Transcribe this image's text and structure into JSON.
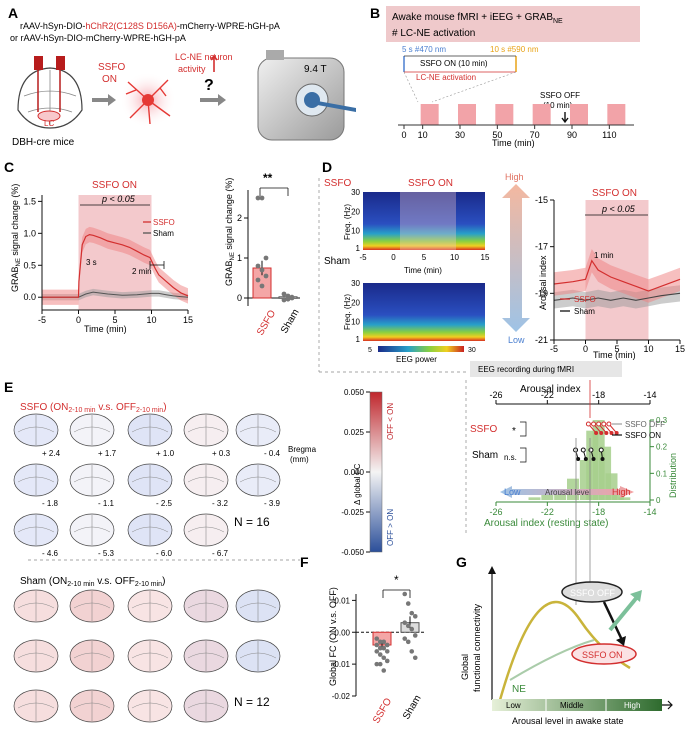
{
  "colors": {
    "red": "#d32f2f",
    "pink_bg": "#f3c9cc",
    "gray": "#555555",
    "green": "#3a8a3a",
    "blue": "#4a7fd0",
    "orange": "#e8a317"
  },
  "panel_A": {
    "label": "A",
    "line1_prefix": "rAAV-hSyn-DIO-",
    "line1_red": "hChR2(C128S D156A)",
    "line1_suffix": "-mCherry-WPRE-hGH-pA",
    "line2": "or  rAAV-hSyn-DIO-mCherry-WPRE-hGH-pA",
    "ssfo_on": [
      "SSFO",
      "ON"
    ],
    "lc_ne": [
      "LC-NE neuron",
      "activity"
    ],
    "lc": "LC",
    "mouse": "DBH-cre mice",
    "question": "?",
    "field": "9.4 T"
  },
  "panel_B": {
    "label": "B",
    "title_line1": "Awake mouse fMRI  + iEEG + GRAB",
    "title_sub": "NE",
    "title_line2": "# LC-NE activation",
    "blue_label": "5 s #470 nm",
    "orange_label": "10 s #590 nm",
    "ssfo_on_label": "SSFO ON (10 min)",
    "activation_label": "LC-NE activation",
    "ssfo_off_label": [
      "SSFO OFF",
      "(10 min)"
    ],
    "ticks": [
      "0",
      "10",
      "30",
      "50",
      "70",
      "90",
      "110"
    ],
    "xlabel": "Time (min)"
  },
  "panel_C": {
    "label": "C",
    "shade_label": "SSFO ON",
    "pval": "p < 0.05",
    "ann_3s": "3 s",
    "ann_2min": "2 min",
    "legend": [
      "SSFO",
      "Sham"
    ],
    "ylabel": "GRAB",
    "ylabel_sub": "NE",
    "ylabel_rest": " signal change (%)",
    "xlabel": "Time (min)",
    "xticks": [
      "-5",
      "0",
      "5",
      "10",
      "15"
    ],
    "yticks": [
      "0.0",
      "0.5",
      "1.0",
      "1.5"
    ],
    "bar_sig": "**",
    "bar_labels": [
      "SSFO",
      "Sham"
    ],
    "bar_yticks": [
      "0",
      "1",
      "2"
    ]
  },
  "panel_D": {
    "label": "D",
    "ssfo_label": "SSFO",
    "sham_label": "Sham",
    "shade_label": "SSFO ON",
    "spec_ylabel": "Freq. (Hz)",
    "spec_yticks": [
      "30",
      "20",
      "10",
      "1"
    ],
    "spec_xticks": [
      "-5",
      "0",
      "5",
      "10",
      "15"
    ],
    "spec_xlabel": "Time (min)",
    "colorbar_min": "5",
    "colorbar_label": "EEG power",
    "colorbar_max": "30",
    "ar_high": "High",
    "ar_low": "Low",
    "ar_ylabel": "Arousal index",
    "ar_yticks": [
      "-15",
      "-17",
      "-19",
      "-21"
    ],
    "ar_xticks": [
      "-5",
      "0",
      "5",
      "10",
      "15"
    ],
    "ar_xlabel": "Time (min)",
    "ar_shade": "SSFO ON",
    "ar_pval": "p < 0.05",
    "ar_ann": "1 min",
    "ar_legend": [
      "SSFO",
      "Sham"
    ],
    "eeg_box": "EEG recording during fMRI"
  },
  "panel_E": {
    "label": "E",
    "ssfo_title_prefix": "SSFO (ON",
    "ssfo_title_sub1": "2-10 min",
    "ssfo_title_mid": " v.s. OFF",
    "ssfo_title_sub2": "2-10 min",
    "ssfo_title_end": ")",
    "sham_title_prefix": "Sham (ON",
    "sham_title_sub1": "2-10 min",
    "sham_title_mid": " v.s. OFF",
    "sham_title_sub2": "2-10 min",
    "sham_title_end": ")",
    "bregma_row1": [
      "+ 2.4",
      "+ 1.7",
      "+ 1.0",
      "+ 0.3",
      "- 0.4"
    ],
    "bregma_row2": [
      "- 1.8",
      "- 1.1",
      "- 2.5",
      "- 3.2",
      "- 3.9"
    ],
    "bregma_row3": [
      "- 4.6",
      "- 5.3",
      "- 6.0",
      "- 6.7"
    ],
    "bregma_label": [
      "Bregma",
      "(mm)"
    ],
    "n_ssfo": "N = 16",
    "n_sham": "N = 12",
    "cb_ticks": [
      "0.050",
      "0.025",
      "0.000",
      "-0.025",
      "-0.050"
    ],
    "cb_label": "Δ global FC",
    "cb_top": "OFF < ON",
    "cb_bottom": "OFF > ON"
  },
  "panel_arousal_dist": {
    "title": "Arousal index",
    "top_ticks": [
      "-26",
      "-22",
      "-18",
      "-14"
    ],
    "ssfo": "SSFO",
    "sham": "Sham",
    "sig_star": "*",
    "sig_ns": "n.s.",
    "legend_off": "SSFO OFF",
    "legend_on": "SSFO ON",
    "low": "Low",
    "arousal_level": "Arousal level",
    "high": "High",
    "bottom_ticks": [
      "-26",
      "-22",
      "-18",
      "-14"
    ],
    "xlabel": "Arousal index (resting state)",
    "dist_label": "Distribution",
    "dist_ticks": [
      "0.3",
      "0.2",
      "0.1",
      "0"
    ]
  },
  "panel_F": {
    "label": "F",
    "sig": "*",
    "ylabel": "Global FC (ON v.s. OFF)",
    "yticks": [
      "0.01",
      "0.00",
      "-0.01",
      "-0.02"
    ],
    "xlabels": [
      "SSFO",
      "Sham"
    ]
  },
  "panel_G": {
    "label": "G",
    "ssfo_off": "SSFO OFF",
    "ssfo_on": "SSFO ON",
    "ne": "NE",
    "ylabel": [
      "Global",
      "functional connectivity"
    ],
    "levels": [
      "Low",
      "Middle",
      "High"
    ],
    "xlabel": "Arousal level in awake state"
  },
  "chart_data": [
    {
      "id": "C_trace",
      "type": "line",
      "title": "GRAB-NE signal change",
      "xlabel": "Time (min)",
      "ylabel": "GRAB-NE signal change (%)",
      "xlim": [
        -5,
        15
      ],
      "ylim": [
        -0.2,
        1.6
      ],
      "series": [
        {
          "name": "SSFO",
          "x": [
            -5,
            -2,
            -0.2,
            0,
            0.05,
            0.5,
            1,
            1.5,
            2,
            3,
            4,
            5,
            6,
            7,
            8,
            9,
            9.8,
            10.5,
            11,
            12,
            13,
            14,
            15
          ],
          "y": [
            0,
            0,
            0,
            0,
            0.25,
            0.82,
            0.95,
            0.98,
            0.97,
            0.93,
            0.88,
            0.85,
            0.82,
            0.78,
            0.72,
            0.66,
            0.62,
            0.45,
            0.35,
            0.25,
            0.15,
            0.07,
            0.02
          ]
        },
        {
          "name": "Sham",
          "x": [
            -5,
            -2,
            0,
            1,
            2,
            4,
            6,
            8,
            10,
            11,
            12,
            13,
            14,
            15
          ],
          "y": [
            0,
            0,
            0,
            0.05,
            0.08,
            0.05,
            0.03,
            0.04,
            0.06,
            0.06,
            0.04,
            0.02,
            0.01,
            0
          ]
        }
      ]
    },
    {
      "id": "C_bar",
      "type": "bar",
      "categories": [
        "SSFO",
        "Sham"
      ],
      "values": [
        0.75,
        0.03
      ],
      "errors": [
        0.18,
        0.03
      ],
      "points": [
        [
          2.5,
          2.5,
          1.0,
          0.8,
          0.7,
          0.55,
          0.45,
          0.3
        ],
        [
          0.1,
          0.05,
          0.0,
          -0.05,
          -0.03,
          0.02
        ]
      ],
      "ylim": [
        -0.2,
        2.7
      ]
    },
    {
      "id": "D_arousal",
      "type": "line",
      "xlim": [
        -5,
        15
      ],
      "ylim": [
        -21,
        -15
      ],
      "series": [
        {
          "name": "SSFO",
          "x": [
            -5,
            -2,
            0,
            1,
            2,
            4,
            6,
            8,
            10,
            12,
            15
          ],
          "y": [
            -18.6,
            -18.5,
            -18.4,
            -17.6,
            -18.0,
            -18.3,
            -18.5,
            -18.7,
            -18.9,
            -18.7,
            -18.4
          ]
        },
        {
          "name": "Sham",
          "x": [
            -5,
            -2,
            0,
            2,
            4,
            6,
            8,
            10,
            12,
            15
          ],
          "y": [
            -19.3,
            -19.2,
            -19.3,
            -19.2,
            -19.3,
            -19.2,
            -19.3,
            -19.2,
            -19.1,
            -19.0
          ]
        }
      ]
    },
    {
      "id": "arousal_distribution",
      "type": "bar",
      "title": "Arousal index (resting state)",
      "x": [
        -23,
        -22,
        -21,
        -20,
        -19,
        -18.5,
        -18,
        -17.5,
        -17,
        -16.5,
        -16
      ],
      "values": [
        0.01,
        0.02,
        0.04,
        0.08,
        0.15,
        0.26,
        0.3,
        0.2,
        0.1,
        0.03,
        0.01
      ],
      "xlim": [
        -26,
        -14
      ],
      "ylim": [
        0,
        0.3
      ]
    },
    {
      "id": "F_box",
      "type": "scatter",
      "categories": [
        "SSFO",
        "Sham"
      ],
      "means": [
        -0.004,
        0.003
      ],
      "errors": [
        0.001,
        0.002
      ],
      "points": [
        [
          -0.002,
          -0.003,
          -0.003,
          -0.004,
          -0.004,
          -0.005,
          -0.005,
          -0.006,
          -0.006,
          -0.007,
          -0.008,
          -0.009,
          -0.01,
          -0.01,
          -0.012,
          -0.004
        ],
        [
          0.012,
          0.009,
          0.006,
          0.005,
          0.003,
          0.002,
          0.001,
          -0.001,
          -0.002,
          -0.003,
          -0.006,
          -0.008
        ]
      ],
      "ylim": [
        -0.02,
        0.012
      ]
    }
  ]
}
